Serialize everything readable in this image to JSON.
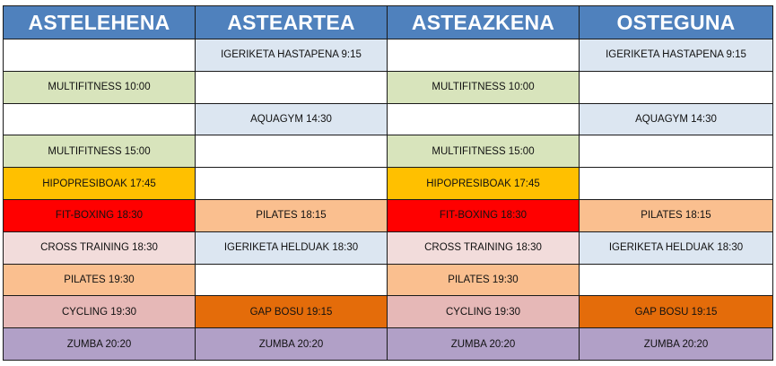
{
  "headers": [
    "ASTELEHENA",
    "ASTEARTEA",
    "ASTEAZKENA",
    "OSTEGUNA"
  ],
  "colors": {
    "header": "#4f81bd",
    "white": "#ffffff",
    "light_green": "#d8e4bc",
    "light_blue": "#dce6f1",
    "gold": "#ffc000",
    "red": "#ff0000",
    "light_pink": "#f2dcdb",
    "peach": "#fabf8f",
    "dusty_pink": "#e6b8b7",
    "dark_orange": "#e46c0a",
    "lavender": "#b1a0c7"
  },
  "rows": [
    [
      {
        "text": "",
        "color": "#ffffff"
      },
      {
        "text": "IGERIKETA HASTAPENA 9:15",
        "color": "#dce6f1"
      },
      {
        "text": "",
        "color": "#ffffff"
      },
      {
        "text": "IGERIKETA HASTAPENA 9:15",
        "color": "#dce6f1"
      }
    ],
    [
      {
        "text": "MULTIFITNESS 10:00",
        "color": "#d8e4bc"
      },
      {
        "text": "",
        "color": "#ffffff"
      },
      {
        "text": "MULTIFITNESS 10:00",
        "color": "#d8e4bc"
      },
      {
        "text": "",
        "color": "#ffffff"
      }
    ],
    [
      {
        "text": "",
        "color": "#ffffff"
      },
      {
        "text": "AQUAGYM 14:30",
        "color": "#dce6f1"
      },
      {
        "text": "",
        "color": "#ffffff"
      },
      {
        "text": "AQUAGYM 14:30",
        "color": "#dce6f1"
      }
    ],
    [
      {
        "text": "MULTIFITNESS 15:00",
        "color": "#d8e4bc"
      },
      {
        "text": "",
        "color": "#ffffff"
      },
      {
        "text": "MULTIFITNESS 15:00",
        "color": "#d8e4bc"
      },
      {
        "text": "",
        "color": "#ffffff"
      }
    ],
    [
      {
        "text": "HIPOPRESIBOAK 17:45",
        "color": "#ffc000"
      },
      {
        "text": "",
        "color": "#ffffff"
      },
      {
        "text": "HIPOPRESIBOAK 17:45",
        "color": "#ffc000"
      },
      {
        "text": "",
        "color": "#ffffff"
      }
    ],
    [
      {
        "text": "FIT-BOXING 18:30",
        "color": "#ff0000"
      },
      {
        "text": "PILATES 18:15",
        "color": "#fabf8f"
      },
      {
        "text": "FIT-BOXING 18:30",
        "color": "#ff0000"
      },
      {
        "text": "PILATES 18:15",
        "color": "#fabf8f"
      }
    ],
    [
      {
        "text": "CROSS TRAINING 18:30",
        "color": "#f2dcdb"
      },
      {
        "text": "IGERIKETA HELDUAK 18:30",
        "color": "#dce6f1"
      },
      {
        "text": "CROSS TRAINING 18:30",
        "color": "#f2dcdb"
      },
      {
        "text": "IGERIKETA HELDUAK 18:30",
        "color": "#dce6f1"
      }
    ],
    [
      {
        "text": "PILATES 19:30",
        "color": "#fabf8f"
      },
      {
        "text": "",
        "color": "#ffffff"
      },
      {
        "text": "PILATES 19:30",
        "color": "#fabf8f"
      },
      {
        "text": "",
        "color": "#ffffff"
      }
    ],
    [
      {
        "text": "CYCLING 19:30",
        "color": "#e6b8b7"
      },
      {
        "text": "GAP BOSU 19:15",
        "color": "#e46c0a"
      },
      {
        "text": "CYCLING 19:30",
        "color": "#e6b8b7"
      },
      {
        "text": "GAP BOSU 19:15",
        "color": "#e46c0a"
      }
    ],
    [
      {
        "text": "ZUMBA 20:20",
        "color": "#b1a0c7"
      },
      {
        "text": "ZUMBA 20:20",
        "color": "#b1a0c7"
      },
      {
        "text": "ZUMBA 20:20",
        "color": "#b1a0c7"
      },
      {
        "text": "ZUMBA 20:20",
        "color": "#b1a0c7"
      }
    ]
  ]
}
